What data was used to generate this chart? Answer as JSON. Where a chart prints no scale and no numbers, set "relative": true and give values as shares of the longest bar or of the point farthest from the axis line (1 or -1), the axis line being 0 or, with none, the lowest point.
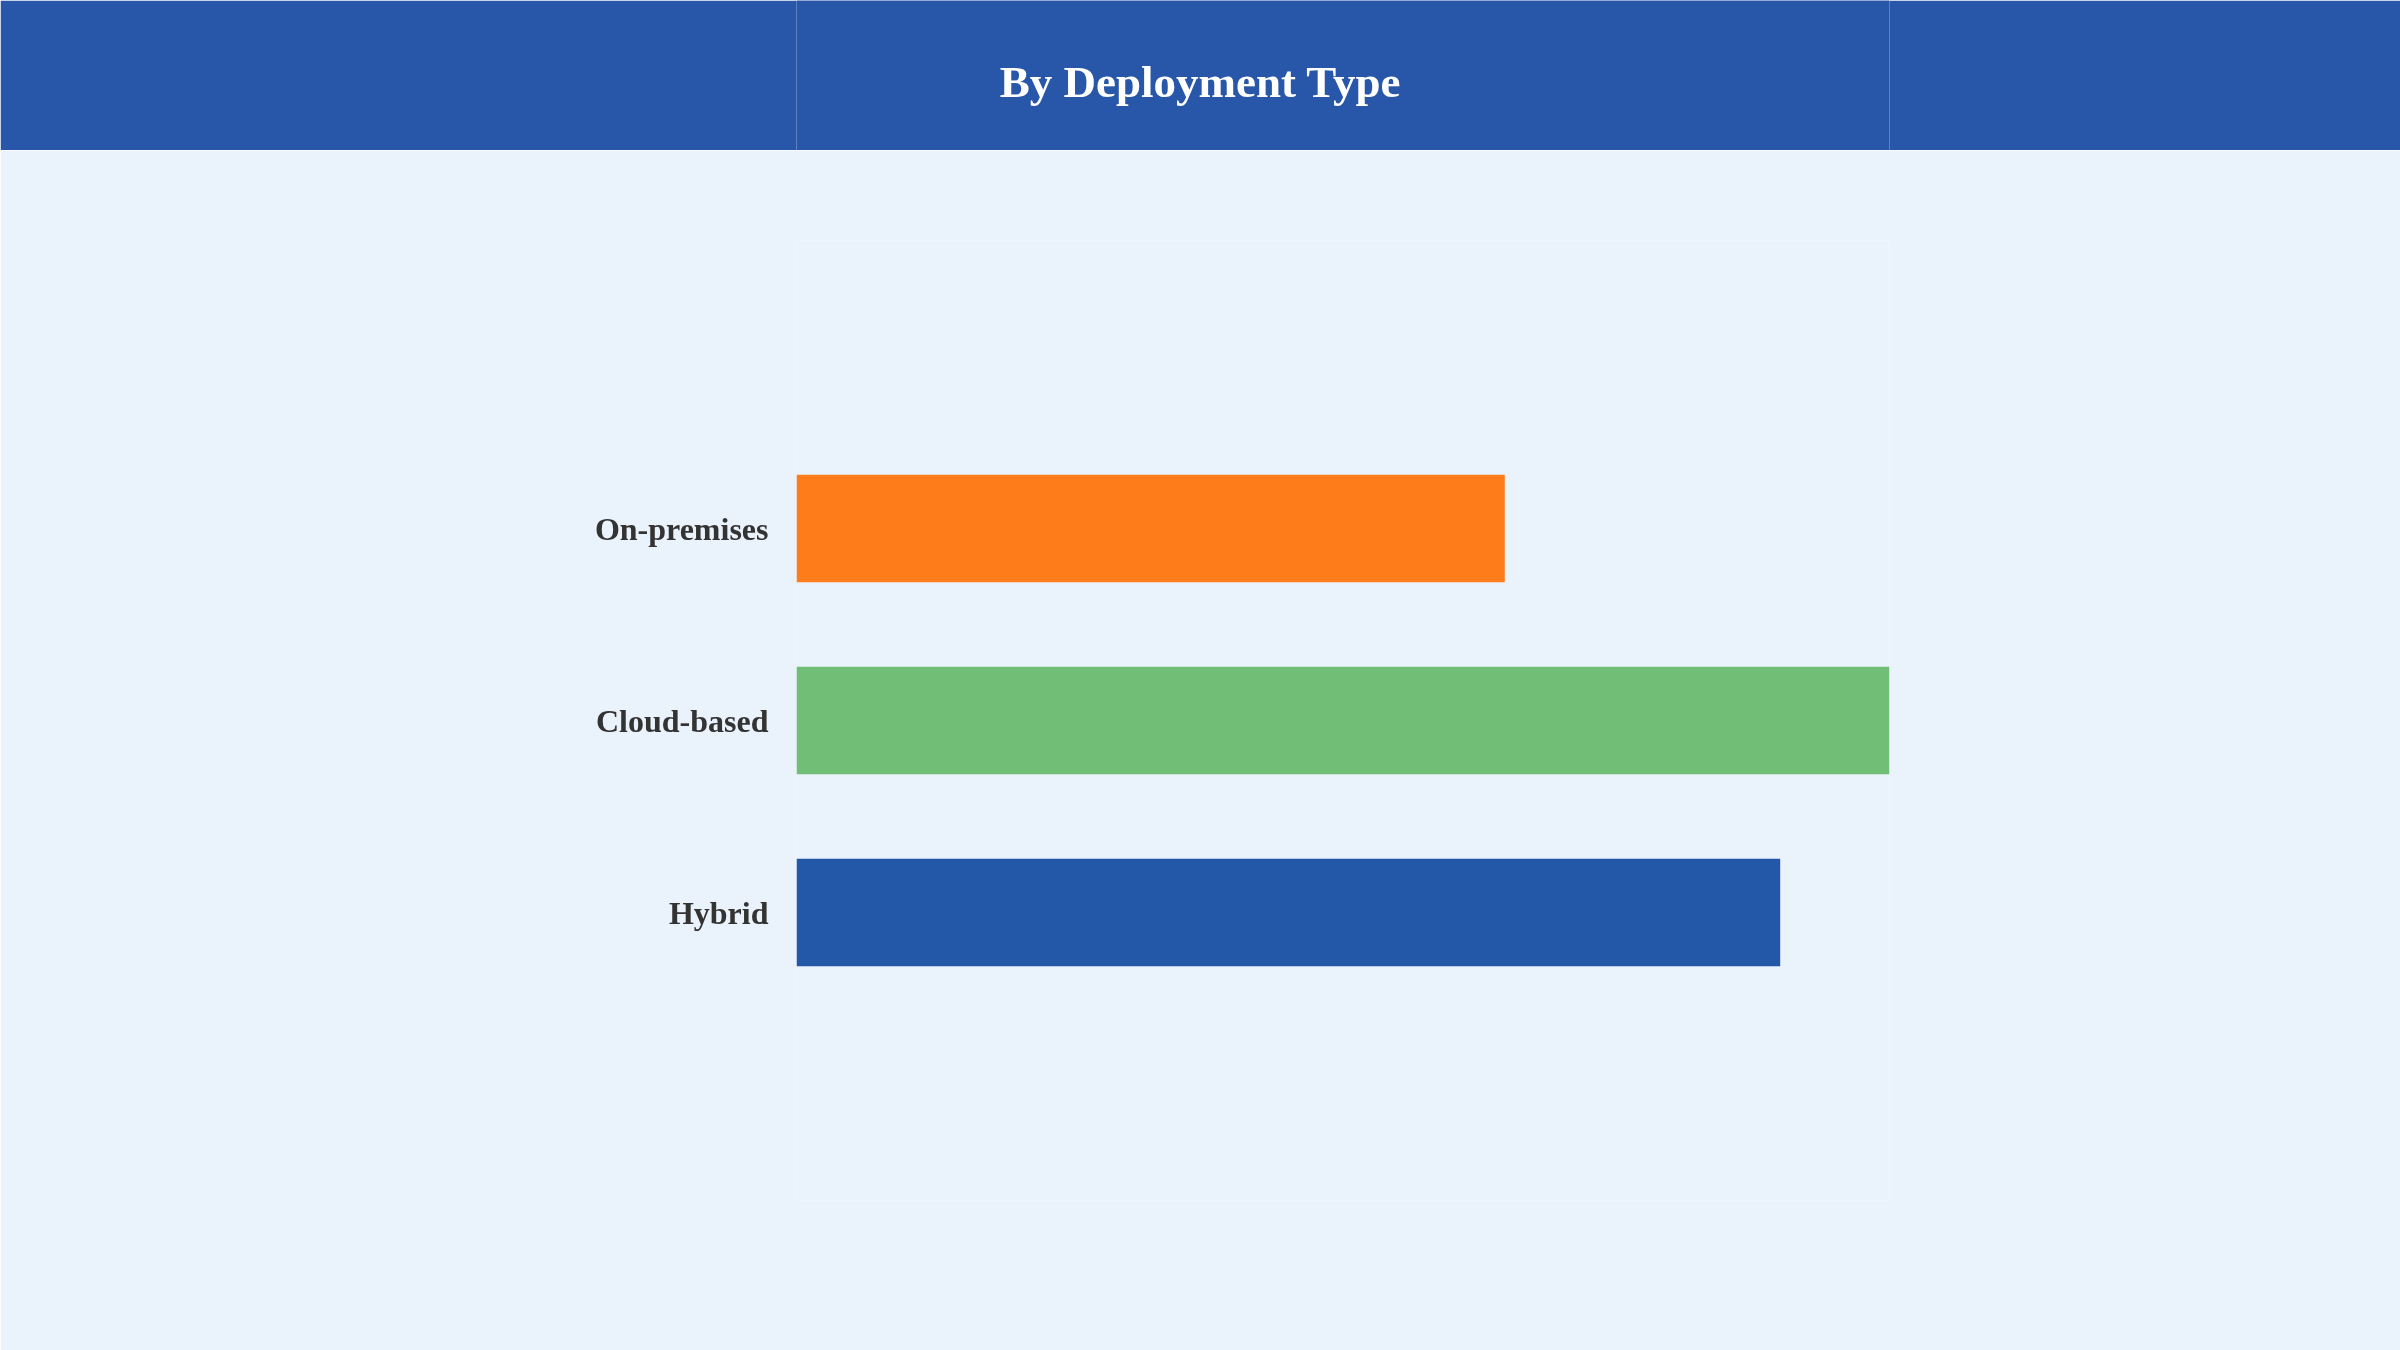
{
  "chart_data": {
    "type": "bar",
    "orientation": "horizontal",
    "title": "By Deployment Type",
    "categories": [
      "On-premises",
      "Cloud-based",
      "Hybrid"
    ],
    "values": [
      0.648,
      1,
      0.9
    ],
    "colors": [
      "#ff7c1a",
      "#71bf76",
      "#2358a9"
    ],
    "relative": true
  }
}
